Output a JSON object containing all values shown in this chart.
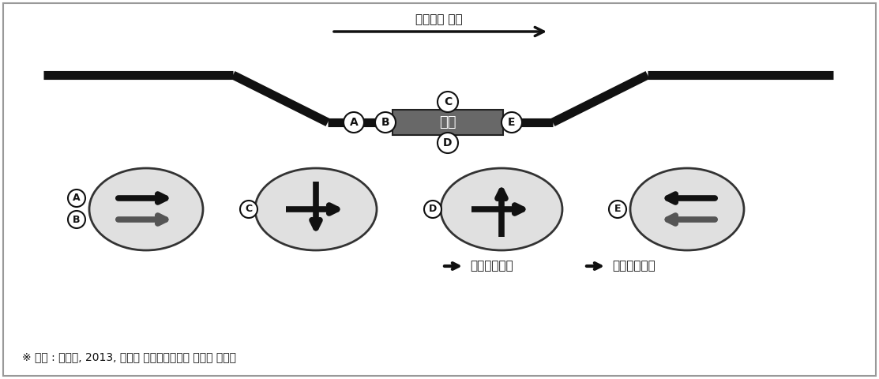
{
  "road_color": "#111111",
  "shelter_color": "#686868",
  "shelter_text": "셸터",
  "shelter_text_color": "#ffffff",
  "direction_text": "차량주행 방향",
  "legend_bus": "버스주행방향",
  "legend_screen": "화면표출방향",
  "footnote": "※ 자료 : 경기도, 2013, 경기도 버스정보시스템 표준화 매뉴얼",
  "ellipse_fill": "#e0e0e0",
  "ellipse_stroke": "#333333"
}
